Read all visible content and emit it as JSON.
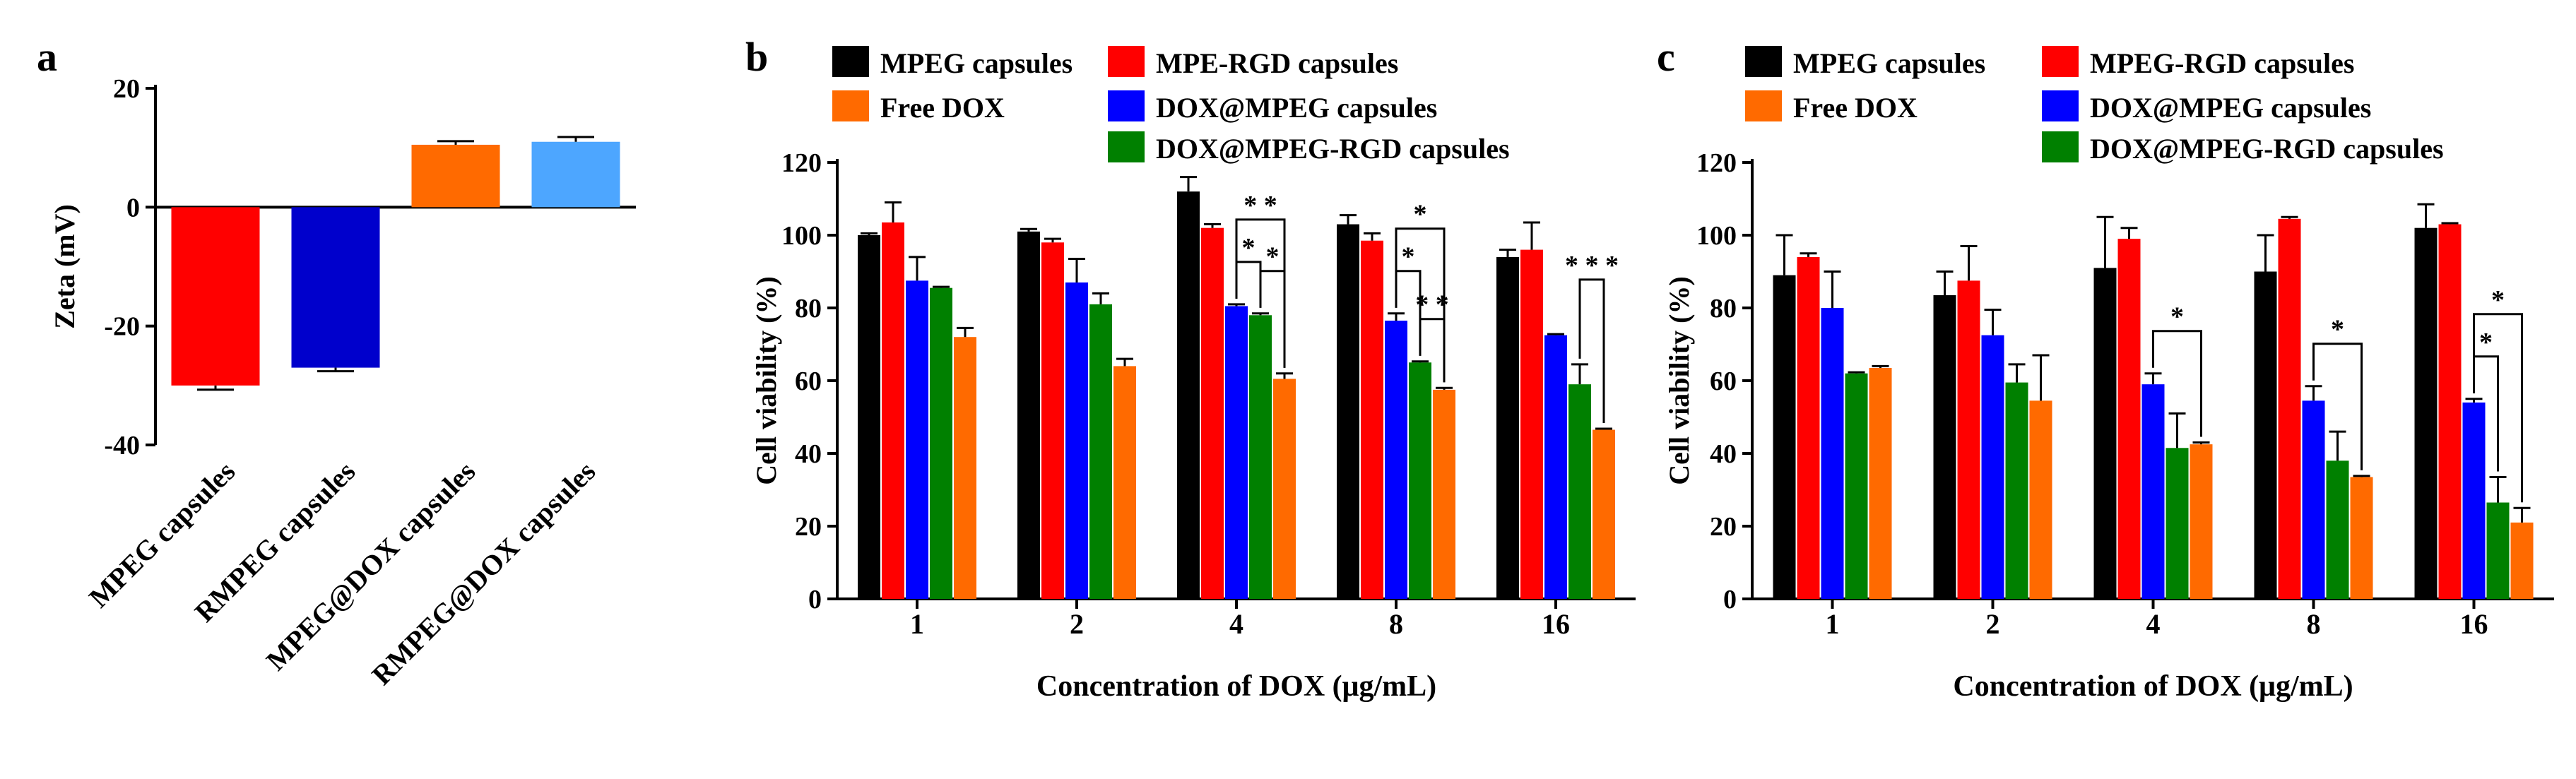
{
  "chart_data": [
    {
      "panel": "a",
      "type": "bar",
      "ylabel": "Zeta (mV)",
      "xlabel": "",
      "ylim": [
        -40,
        20
      ],
      "yticks": [
        -40,
        -20,
        0,
        20
      ],
      "categories": [
        "MPEG capsules",
        "RMPEG capsules",
        "MPEG@DOX capsules",
        "RMPEG@DOX capsules"
      ],
      "values": [
        -30,
        -27,
        10.5,
        11
      ],
      "errors": [
        0.7,
        0.6,
        0.6,
        0.8
      ],
      "colors": [
        "#ff0000",
        "#0000cc",
        "#ff6a00",
        "#4da6ff"
      ]
    },
    {
      "panel": "b",
      "type": "bar",
      "ylabel": "Cell viability (%)",
      "xlabel": "Concentration of DOX (μg/mL)",
      "ylim": [
        0,
        120
      ],
      "yticks": [
        0,
        20,
        40,
        60,
        80,
        100,
        120
      ],
      "categories": [
        "1",
        "2",
        "4",
        "8",
        "16"
      ],
      "legend": [
        "MPEG capsules",
        "MPE-RGD capsules",
        "Free DOX",
        "DOX@MPEG capsules",
        "DOX@MPEG-RGD capsules"
      ],
      "series": [
        {
          "name": "MPEG capsules",
          "color": "#000000",
          "values": [
            100,
            101,
            112,
            103,
            94
          ],
          "errors": [
            0.5,
            0.7,
            4,
            2.5,
            2
          ]
        },
        {
          "name": "MPE-RGD capsules",
          "color": "#ff0000",
          "values": [
            103.5,
            98,
            102,
            98.5,
            96
          ],
          "errors": [
            5.5,
            1,
            1,
            2,
            7.5
          ]
        },
        {
          "name": "DOX@MPEG capsules",
          "color": "#0000ff",
          "values": [
            87.5,
            87,
            80.5,
            76.5,
            72.5
          ],
          "errors": [
            6.5,
            6.5,
            0.5,
            2,
            0.3
          ]
        },
        {
          "name": "DOX@MPEG-RGD capsules",
          "color": "#008000",
          "values": [
            85.5,
            81,
            78,
            65,
            59
          ],
          "errors": [
            0.3,
            3,
            0.5,
            0.3,
            5.5
          ]
        },
        {
          "name": "Free DOX",
          "color": "#ff6a00",
          "values": [
            72,
            64,
            60.5,
            57.5,
            46.5
          ],
          "errors": [
            2.5,
            2,
            1.5,
            0.5,
            0.3
          ]
        }
      ],
      "significance": [
        {
          "cat": 2,
          "from": 2,
          "to": 4,
          "label": "* *",
          "level": 1
        },
        {
          "cat": 2,
          "from": 2,
          "to": 3,
          "label": "*",
          "level": 0
        },
        {
          "cat": 2,
          "from": 3,
          "to": 4,
          "label": "*",
          "level": 0
        },
        {
          "cat": 3,
          "from": 2,
          "to": 4,
          "label": "*",
          "level": 1
        },
        {
          "cat": 3,
          "from": 2,
          "to": 3,
          "label": "*",
          "level": 0
        },
        {
          "cat": 3,
          "from": 3,
          "to": 4,
          "label": "* *",
          "level": 0
        },
        {
          "cat": 4,
          "from": 3,
          "to": 4,
          "label": "* * *",
          "level": 1
        }
      ]
    },
    {
      "panel": "c",
      "type": "bar",
      "ylabel": "Cell viability (%)",
      "xlabel": "Concentration of DOX (μg/mL)",
      "ylim": [
        0,
        120
      ],
      "yticks": [
        0,
        20,
        40,
        60,
        80,
        100,
        120
      ],
      "categories": [
        "1",
        "2",
        "4",
        "8",
        "16"
      ],
      "legend": [
        "MPEG capsules",
        "MPEG-RGD capsules",
        "Free DOX",
        "DOX@MPEG capsules",
        "DOX@MPEG-RGD capsules"
      ],
      "series": [
        {
          "name": "MPEG capsules",
          "color": "#000000",
          "values": [
            89,
            83.5,
            91,
            90,
            102
          ],
          "errors": [
            11,
            6.5,
            14,
            10,
            6.5
          ]
        },
        {
          "name": "MPEG-RGD capsules",
          "color": "#ff0000",
          "values": [
            94,
            87.5,
            99,
            104.5,
            103
          ],
          "errors": [
            1,
            9.5,
            3,
            0.5,
            0.3
          ]
        },
        {
          "name": "DOX@MPEG capsules",
          "color": "#0000ff",
          "values": [
            80,
            72.5,
            59,
            54.5,
            54
          ],
          "errors": [
            10,
            7,
            3,
            4,
            1
          ]
        },
        {
          "name": "DOX@MPEG-RGD capsules",
          "color": "#008000",
          "values": [
            62,
            59.5,
            41.5,
            38,
            26.5
          ],
          "errors": [
            0.3,
            5,
            9.5,
            8,
            7
          ]
        },
        {
          "name": "Free DOX",
          "color": "#ff6a00",
          "values": [
            63.5,
            54.5,
            42.5,
            33.5,
            21
          ],
          "errors": [
            0.5,
            12.5,
            0.5,
            0.3,
            4
          ]
        }
      ],
      "significance": [
        {
          "cat": 2,
          "from": 2,
          "to": 4,
          "label": "*",
          "level": 0
        },
        {
          "cat": 3,
          "from": 2,
          "to": 4,
          "label": "*",
          "level": 0
        },
        {
          "cat": 4,
          "from": 2,
          "to": 3,
          "label": "*",
          "level": 0
        },
        {
          "cat": 4,
          "from": 2,
          "to": 4,
          "label": "*",
          "level": 1
        }
      ]
    }
  ]
}
